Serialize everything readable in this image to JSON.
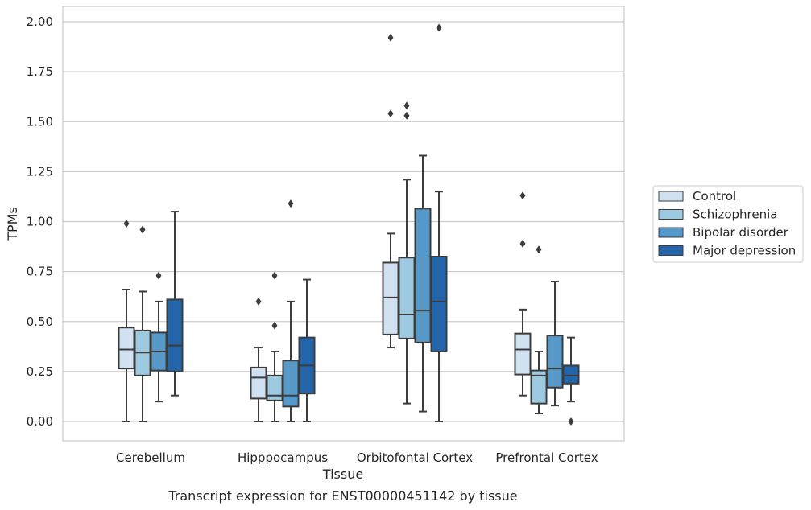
{
  "chart_data": {
    "type": "box",
    "caption": "Transcript expression for ENST00000451142 by tissue",
    "xlabel": "Tissue",
    "ylabel": "TPMs",
    "ylim": [
      -0.1,
      2.07
    ],
    "yticks": [
      "0.00",
      "0.25",
      "0.50",
      "0.75",
      "1.00",
      "1.25",
      "1.50",
      "1.75",
      "2.00"
    ],
    "grid": "horizontal",
    "legend_position": "right",
    "categories": [
      "Cerebellum",
      "Hipppocampus",
      "Orbitofontal Cortex",
      "Prefrontal Cortex"
    ],
    "series": [
      {
        "name": "Control",
        "color": "#d0e1f2",
        "boxes": [
          {
            "whislo": 0.0,
            "q1": 0.265,
            "med": 0.36,
            "q3": 0.47,
            "whishi": 0.66,
            "fliers": [
              0.99
            ]
          },
          {
            "whislo": 0.0,
            "q1": 0.115,
            "med": 0.22,
            "q3": 0.27,
            "whishi": 0.37,
            "fliers": [
              0.6
            ]
          },
          {
            "whislo": 0.37,
            "q1": 0.435,
            "med": 0.62,
            "q3": 0.795,
            "whishi": 0.94,
            "fliers": [
              1.54,
              1.92
            ]
          },
          {
            "whislo": 0.13,
            "q1": 0.235,
            "med": 0.36,
            "q3": 0.44,
            "whishi": 0.56,
            "fliers": [
              0.89,
              1.13
            ]
          }
        ]
      },
      {
        "name": "Schizophrenia",
        "color": "#9ecae1",
        "boxes": [
          {
            "whislo": 0.0,
            "q1": 0.23,
            "med": 0.345,
            "q3": 0.455,
            "whishi": 0.65,
            "fliers": [
              0.96
            ]
          },
          {
            "whislo": 0.0,
            "q1": 0.105,
            "med": 0.13,
            "q3": 0.23,
            "whishi": 0.35,
            "fliers": [
              0.48,
              0.73
            ]
          },
          {
            "whislo": 0.09,
            "q1": 0.415,
            "med": 0.535,
            "q3": 0.82,
            "whishi": 1.21,
            "fliers": [
              1.53,
              1.58
            ]
          },
          {
            "whislo": 0.04,
            "q1": 0.09,
            "med": 0.23,
            "q3": 0.255,
            "whishi": 0.35,
            "fliers": [
              0.86
            ]
          }
        ]
      },
      {
        "name": "Bipolar disorder",
        "color": "#5699c8",
        "boxes": [
          {
            "whislo": 0.1,
            "q1": 0.255,
            "med": 0.35,
            "q3": 0.445,
            "whishi": 0.6,
            "fliers": [
              0.73
            ]
          },
          {
            "whislo": 0.0,
            "q1": 0.075,
            "med": 0.13,
            "q3": 0.305,
            "whishi": 0.6,
            "fliers": [
              1.09
            ]
          },
          {
            "whislo": 0.05,
            "q1": 0.395,
            "med": 0.555,
            "q3": 1.065,
            "whishi": 1.33,
            "fliers": []
          },
          {
            "whislo": 0.08,
            "q1": 0.17,
            "med": 0.265,
            "q3": 0.43,
            "whishi": 0.7,
            "fliers": []
          }
        ]
      },
      {
        "name": "Major depression",
        "color": "#2464a8",
        "boxes": [
          {
            "whislo": 0.13,
            "q1": 0.25,
            "med": 0.38,
            "q3": 0.61,
            "whishi": 1.05,
            "fliers": []
          },
          {
            "whislo": 0.0,
            "q1": 0.14,
            "med": 0.28,
            "q3": 0.42,
            "whishi": 0.71,
            "fliers": []
          },
          {
            "whislo": 0.0,
            "q1": 0.35,
            "med": 0.6,
            "q3": 0.825,
            "whishi": 1.15,
            "fliers": [
              1.97
            ]
          },
          {
            "whislo": 0.1,
            "q1": 0.19,
            "med": 0.23,
            "q3": 0.28,
            "whishi": 0.42,
            "fliers": [
              0.0
            ]
          }
        ]
      }
    ]
  }
}
